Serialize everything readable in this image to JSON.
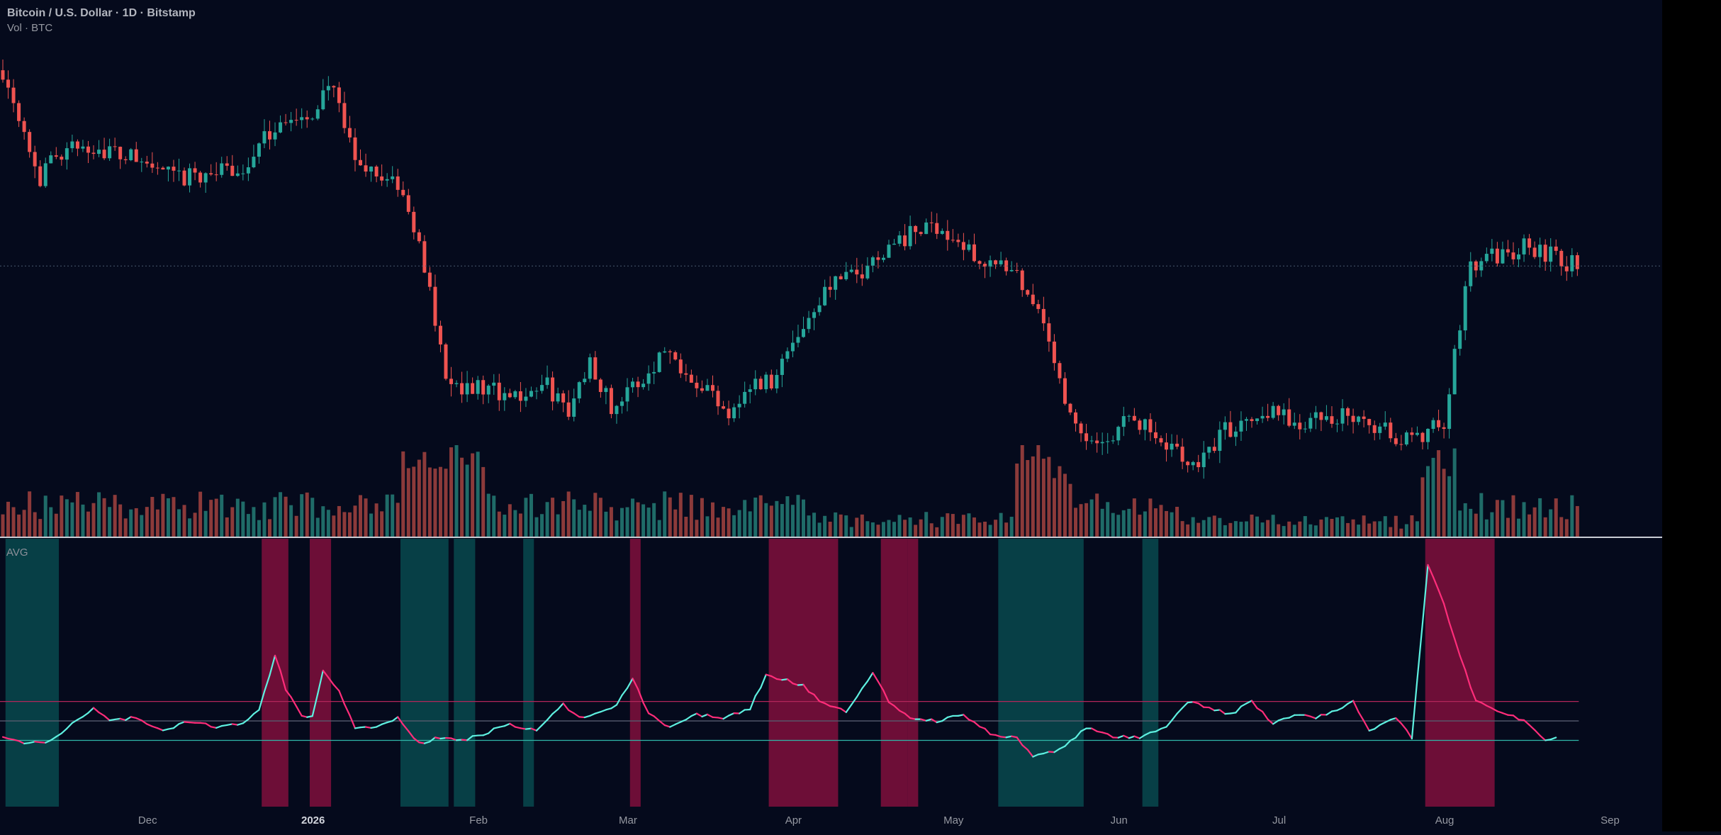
{
  "header": {
    "symbol_title": "Bitcoin / U.S. Dollar · 1D · Bitstamp",
    "volume_label": "Vol · BTC"
  },
  "indicator": {
    "label": "AVG"
  },
  "colors": {
    "background": "#050a1c",
    "up": "#26a69a",
    "down": "#ef5350",
    "volume_up": "#1f6b68",
    "volume_down": "#8c3a3a",
    "indicator_high": "#ff2d7a",
    "indicator_low": "#5ef0e0",
    "zone_high": "#c2124f",
    "zone_low": "#0a6c6a",
    "upper_band": "#b3265a",
    "lower_band": "#2fb7a8"
  },
  "chart_data": [
    {
      "type": "candlestick",
      "title": "Bitcoin / U.S. Dollar · 1D · Bitstamp",
      "x_ticks": [
        "Dec",
        "2026",
        "Feb",
        "Mar",
        "Apr",
        "May",
        "Jun",
        "Jul",
        "Aug",
        "Sep"
      ],
      "x_tick_days": [
        25,
        56,
        87,
        115,
        146,
        176,
        207,
        237,
        268,
        299
      ],
      "start_date": "2025-11-07",
      "close_path_keypoints": [
        [
          0,
          112000
        ],
        [
          3,
          106000
        ],
        [
          7,
          96000
        ],
        [
          10,
          100000
        ],
        [
          16,
          101000
        ],
        [
          25,
          99000
        ],
        [
          33,
          96000
        ],
        [
          38,
          97000
        ],
        [
          45,
          97500
        ],
        [
          52,
          105000
        ],
        [
          57,
          104000
        ],
        [
          61,
          110500
        ],
        [
          66,
          99000
        ],
        [
          74,
          95000
        ],
        [
          78,
          86000
        ],
        [
          80,
          80000
        ],
        [
          83,
          68000
        ],
        [
          86,
          66000
        ],
        [
          92,
          65500
        ],
        [
          96,
          64500
        ],
        [
          102,
          66000
        ],
        [
          106,
          62000
        ],
        [
          110,
          70000
        ],
        [
          114,
          63000
        ],
        [
          120,
          67000
        ],
        [
          124,
          71500
        ],
        [
          130,
          67000
        ],
        [
          136,
          62500
        ],
        [
          140,
          66000
        ],
        [
          144,
          67000
        ],
        [
          150,
          75000
        ],
        [
          155,
          81000
        ],
        [
          160,
          82000
        ],
        [
          165,
          86000
        ],
        [
          170,
          88000
        ],
        [
          175,
          89500
        ],
        [
          180,
          86000
        ],
        [
          185,
          84000
        ],
        [
          190,
          81500
        ],
        [
          195,
          76000
        ],
        [
          200,
          61000
        ],
        [
          205,
          57000
        ],
        [
          210,
          61000
        ],
        [
          214,
          60000
        ],
        [
          219,
          57000
        ],
        [
          224,
          54500
        ],
        [
          228,
          59000
        ],
        [
          233,
          61500
        ],
        [
          238,
          62500
        ],
        [
          242,
          60500
        ],
        [
          248,
          61000
        ],
        [
          252,
          62000
        ],
        [
          256,
          60500
        ],
        [
          260,
          59000
        ],
        [
          265,
          58500
        ],
        [
          270,
          61000
        ],
        [
          275,
          84000
        ],
        [
          281,
          85000
        ],
        [
          285,
          86500
        ],
        [
          290,
          85000
        ],
        [
          295,
          83500
        ]
      ],
      "y_range": [
        50000,
        115000
      ],
      "current_price_line": 83500
    },
    {
      "type": "bar",
      "title": "Vol · BTC",
      "bar_count": 296,
      "value_scale_note": "relative volume, tallest bars near late Jan / early Feb and late Aug"
    },
    {
      "type": "line",
      "title": "AVG",
      "upper_band": 1.6,
      "lower_band": 1.0,
      "mid_band": 1.3,
      "y_range": [
        0.0,
        4.0
      ],
      "keypoints": [
        [
          0,
          1.05
        ],
        [
          5,
          0.95
        ],
        [
          9,
          1.0
        ],
        [
          13,
          1.25
        ],
        [
          17,
          1.5
        ],
        [
          20,
          1.3
        ],
        [
          25,
          1.35
        ],
        [
          30,
          1.15
        ],
        [
          35,
          1.3
        ],
        [
          40,
          1.2
        ],
        [
          45,
          1.25
        ],
        [
          48,
          1.45
        ],
        [
          51,
          2.3
        ],
        [
          53,
          1.8
        ],
        [
          56,
          1.4
        ],
        [
          58,
          1.35
        ],
        [
          60,
          2.1
        ],
        [
          63,
          1.75
        ],
        [
          66,
          1.2
        ],
        [
          70,
          1.2
        ],
        [
          74,
          1.35
        ],
        [
          78,
          0.95
        ],
        [
          82,
          1.05
        ],
        [
          86,
          1.0
        ],
        [
          90,
          1.1
        ],
        [
          95,
          1.25
        ],
        [
          100,
          1.15
        ],
        [
          105,
          1.55
        ],
        [
          108,
          1.35
        ],
        [
          112,
          1.45
        ],
        [
          115,
          1.55
        ],
        [
          118,
          1.95
        ],
        [
          121,
          1.4
        ],
        [
          125,
          1.2
        ],
        [
          130,
          1.4
        ],
        [
          135,
          1.35
        ],
        [
          140,
          1.5
        ],
        [
          143,
          2.0
        ],
        [
          146,
          1.95
        ],
        [
          150,
          1.85
        ],
        [
          153,
          1.6
        ],
        [
          158,
          1.45
        ],
        [
          163,
          2.05
        ],
        [
          166,
          1.6
        ],
        [
          170,
          1.35
        ],
        [
          175,
          1.3
        ],
        [
          180,
          1.4
        ],
        [
          185,
          1.1
        ],
        [
          190,
          1.05
        ],
        [
          193,
          0.75
        ],
        [
          198,
          0.85
        ],
        [
          203,
          1.2
        ],
        [
          208,
          1.05
        ],
        [
          213,
          1.05
        ],
        [
          218,
          1.2
        ],
        [
          222,
          1.6
        ],
        [
          226,
          1.5
        ],
        [
          230,
          1.4
        ],
        [
          234,
          1.6
        ],
        [
          238,
          1.25
        ],
        [
          242,
          1.4
        ],
        [
          246,
          1.35
        ],
        [
          250,
          1.45
        ],
        [
          253,
          1.6
        ],
        [
          256,
          1.15
        ],
        [
          261,
          1.35
        ],
        [
          264,
          1.05
        ],
        [
          267,
          3.7
        ],
        [
          270,
          3.1
        ],
        [
          273,
          2.3
        ],
        [
          276,
          1.6
        ],
        [
          280,
          1.45
        ],
        [
          285,
          1.3
        ],
        [
          289,
          1.0
        ],
        [
          291,
          1.05
        ]
      ],
      "high_zones": [
        [
          49,
          53
        ],
        [
          58,
          61
        ],
        [
          118,
          119
        ],
        [
          144,
          156
        ],
        [
          165,
          169
        ],
        [
          170,
          171
        ],
        [
          267,
          279
        ]
      ],
      "low_zones": [
        [
          1,
          10
        ],
        [
          75,
          83
        ],
        [
          85,
          88
        ],
        [
          98,
          99
        ],
        [
          187,
          202
        ],
        [
          214,
          216
        ]
      ]
    }
  ]
}
